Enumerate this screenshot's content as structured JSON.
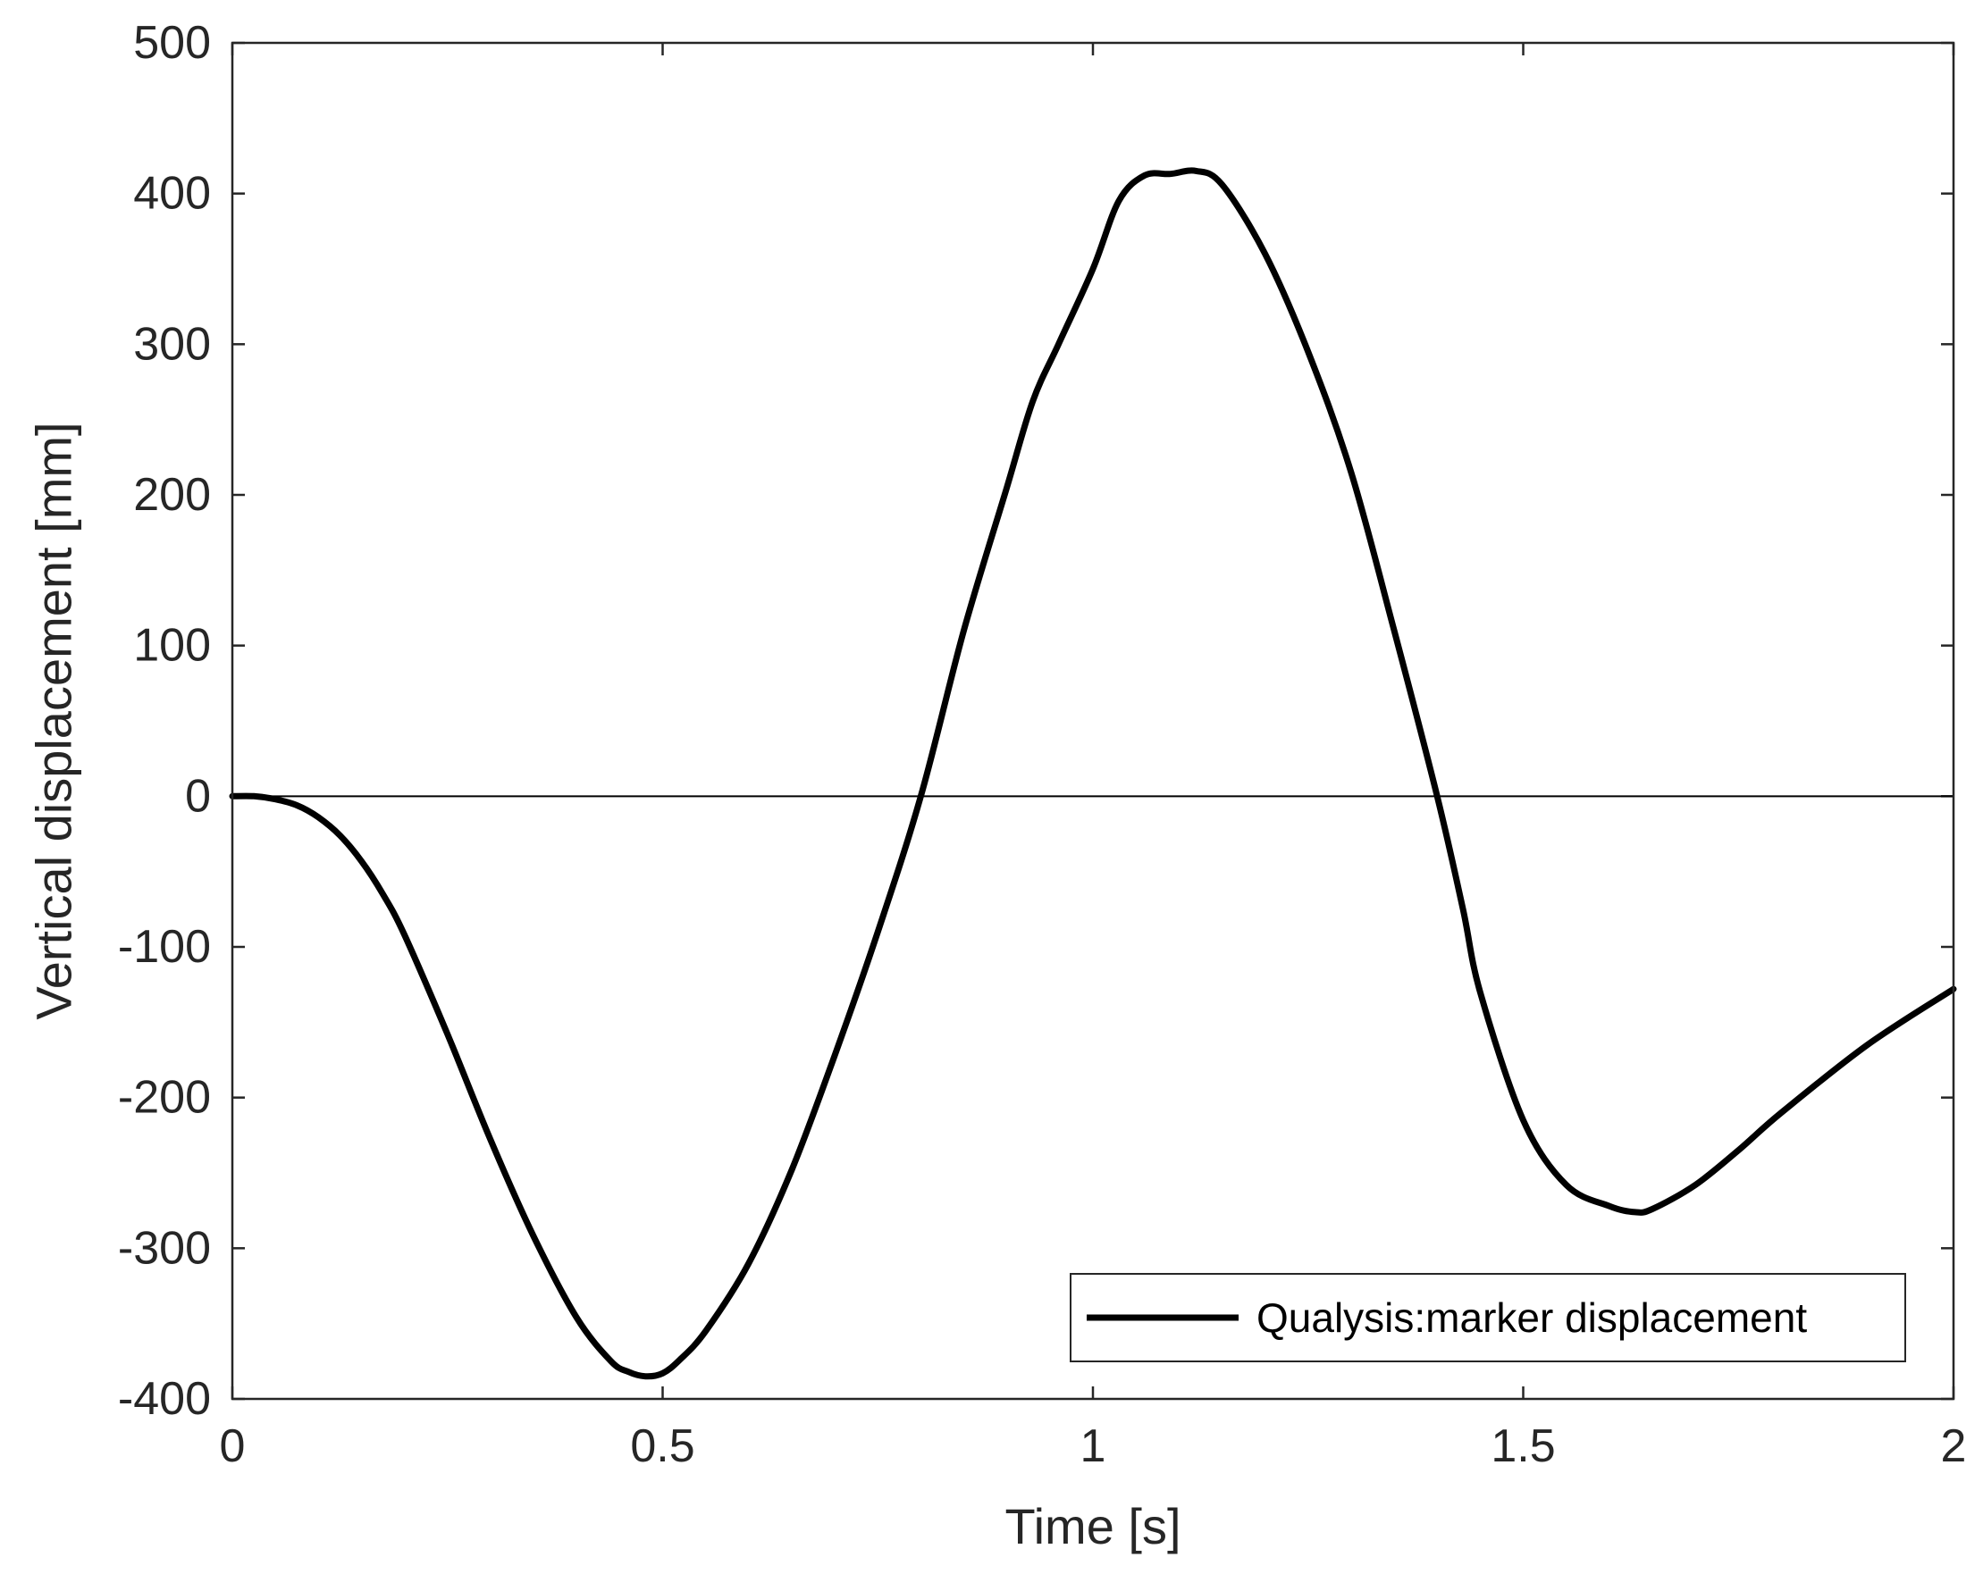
{
  "chart_data": {
    "type": "line",
    "title": "",
    "xlabel": "Time [s]",
    "ylabel": "Vertical displacement [mm]",
    "xlim": [
      0,
      2
    ],
    "ylim": [
      -400,
      500
    ],
    "x_ticks": [
      0,
      0.5,
      1,
      1.5,
      2
    ],
    "x_tick_labels": [
      "0",
      "0.5",
      "1",
      "1.5",
      "2"
    ],
    "y_ticks": [
      -400,
      -300,
      -200,
      -100,
      0,
      100,
      200,
      300,
      400,
      500
    ],
    "y_tick_labels": [
      "-400",
      "-300",
      "-200",
      "-100",
      "0",
      "100",
      "200",
      "300",
      "400",
      "500"
    ],
    "grid": false,
    "reference_line_y": 0,
    "legend": {
      "position": "bottom-right"
    },
    "series": [
      {
        "name": "Qualysis:marker displacement",
        "color": "#000000",
        "x": [
          0,
          0.025,
          0.05,
          0.075,
          0.1,
          0.125,
          0.15,
          0.175,
          0.2,
          0.25,
          0.3,
          0.35,
          0.4,
          0.44,
          0.46,
          0.48,
          0.5,
          0.52,
          0.55,
          0.6,
          0.65,
          0.7,
          0.75,
          0.8,
          0.85,
          0.9,
          0.93,
          0.96,
          1.0,
          1.03,
          1.06,
          1.09,
          1.12,
          1.15,
          1.2,
          1.25,
          1.3,
          1.35,
          1.4,
          1.43,
          1.45,
          1.5,
          1.55,
          1.6,
          1.63,
          1.65,
          1.7,
          1.75,
          1.8,
          1.9,
          2.0
        ],
        "y": [
          0,
          0,
          -2,
          -6,
          -14,
          -26,
          -43,
          -65,
          -92,
          -158,
          -228,
          -292,
          -346,
          -375,
          -382,
          -385,
          -383,
          -374,
          -355,
          -310,
          -248,
          -172,
          -90,
          0,
          110,
          205,
          262,
          300,
          350,
          395,
          412,
          413,
          415,
          406,
          360,
          295,
          215,
          110,
          0,
          -75,
          -130,
          -215,
          -258,
          -272,
          -276,
          -274,
          -258,
          -235,
          -210,
          -165,
          -128
        ]
      }
    ]
  }
}
